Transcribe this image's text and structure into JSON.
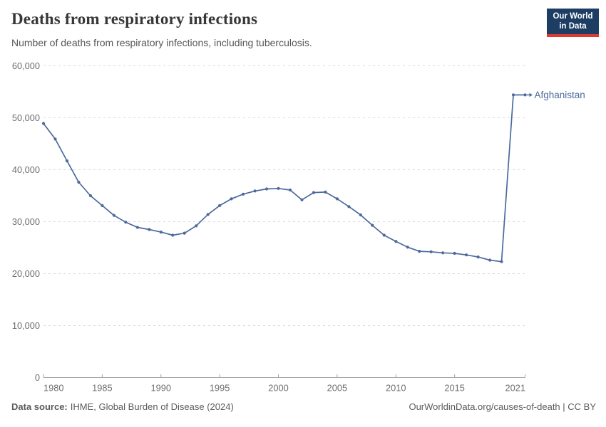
{
  "header": {
    "title": "Deaths from respiratory infections",
    "subtitle": "Number of deaths from respiratory infections, including tuberculosis."
  },
  "logo": {
    "line1": "Our World",
    "line2": "in Data",
    "bg_color": "#1d3d63",
    "accent_color": "#dc3b33"
  },
  "chart_data": {
    "type": "line",
    "title": "Deaths from respiratory infections",
    "xlabel": "",
    "ylabel": "",
    "ylim": [
      0,
      60000
    ],
    "yticks": [
      0,
      10000,
      20000,
      30000,
      40000,
      50000,
      60000
    ],
    "xticks": [
      1980,
      1985,
      1990,
      1995,
      2000,
      2005,
      2010,
      2015,
      2021
    ],
    "grid": true,
    "legend_position": "end-of-line-label",
    "series": [
      {
        "name": "Afghanistan",
        "color": "#4C6A9C",
        "x": [
          1980,
          1981,
          1982,
          1983,
          1984,
          1985,
          1986,
          1987,
          1988,
          1989,
          1990,
          1991,
          1992,
          1993,
          1994,
          1995,
          1996,
          1997,
          1998,
          1999,
          2000,
          2001,
          2002,
          2003,
          2004,
          2005,
          2006,
          2007,
          2008,
          2009,
          2010,
          2011,
          2012,
          2013,
          2014,
          2015,
          2016,
          2017,
          2018,
          2019,
          2020,
          2021
        ],
        "values": [
          48900,
          45900,
          41700,
          37600,
          35000,
          33100,
          31200,
          29900,
          28900,
          28500,
          28000,
          27400,
          27800,
          29200,
          31400,
          33100,
          34400,
          35300,
          35900,
          36300,
          36400,
          36100,
          34200,
          35600,
          35700,
          34400,
          32900,
          31300,
          29300,
          27400,
          26200,
          25100,
          24300,
          24200,
          24000,
          23900,
          23600,
          23200,
          22600,
          22300,
          54400,
          54400
        ]
      }
    ]
  },
  "footer": {
    "source_label": "Data source:",
    "source_text": "IHME, Global Burden of Disease (2024)",
    "credit": "OurWorldinData.org/causes-of-death | CC BY"
  },
  "colors": {
    "line": "#4C6A9C",
    "gridline": "#dadada",
    "axis": "#a3a3a3",
    "tick_label": "#6e6e6e",
    "title": "#373737",
    "subtitle": "#565656",
    "footer": "#5b5b5b"
  }
}
